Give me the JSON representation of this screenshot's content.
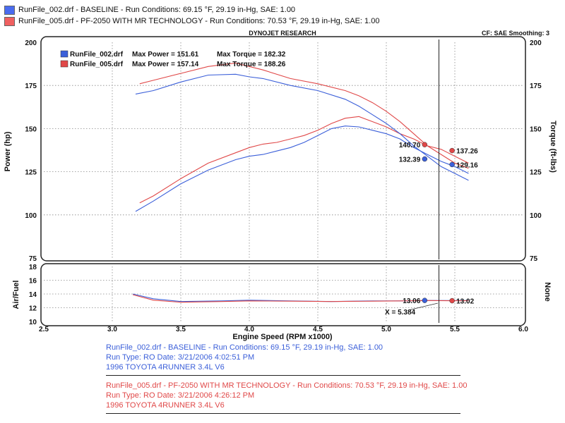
{
  "header": {
    "runs": [
      {
        "text": "RunFile_002.drf - BASELINE  -  Run Conditions: 69.15 °F, 29.19 in-Hg, SAE: 1.00",
        "color": "#3b5fd9"
      },
      {
        "text": "RunFile_005.drf - PF-2050 WITH MR TECHNOLOGY  -  Run Conditions: 70.53 °F, 29.19 in-Hg, SAE: 1.00",
        "color": "#e04848"
      }
    ],
    "chart_title": "DYNOJET RESEARCH",
    "cf_label": "CF: SAE  Smoothing: 3"
  },
  "footer": {
    "blocks": [
      {
        "color": "#3b5fd9",
        "lines": [
          "RunFile_002.drf - BASELINE  -  Run Conditions: 69.15 °F, 29.19 in-Hg, SAE: 1.00",
          "Run Type: RO  Date: 3/21/2006 4:02:51 PM",
          "1996 TOYOTA 4RUNNER 3.4L V6"
        ]
      },
      {
        "color": "#e04848",
        "lines": [
          "RunFile_005.drf - PF-2050 WITH MR TECHNOLOGY  -  Run Conditions: 70.53 °F, 29.19 in-Hg, SAE: 1.00",
          "Run Type: RO  Date: 3/21/2006 4:26:12 PM",
          "1996 TOYOTA 4RUNNER 3.4L V6"
        ]
      }
    ]
  },
  "chart_data": [
    {
      "type": "line",
      "title": "DYNOJET RESEARCH",
      "xlabel": "Engine Speed (RPM x1000)",
      "ylabel": "Power (hp)",
      "ylabel_right": "Torque (ft-lbs)",
      "xlim": [
        2.5,
        6.0
      ],
      "ylim": [
        75,
        200
      ],
      "ylim_right": [
        75,
        200
      ],
      "x_ticks": [
        "2.5",
        "3.0",
        "3.5",
        "4.0",
        "4.5",
        "5.0",
        "5.5",
        "6.0"
      ],
      "y_ticks": [
        "75",
        "100",
        "125",
        "150",
        "175",
        "200"
      ],
      "y_ticks_right": [
        "75",
        "100",
        "125",
        "150",
        "175",
        "200"
      ],
      "grid": true,
      "legend": [
        {
          "file": "RunFile_002.drf",
          "power_label": "Max Power = 151.61",
          "torque_label": "Max Torque = 182.32",
          "color": "#3b5fd9"
        },
        {
          "file": "RunFile_005.drf",
          "power_label": "Max Power = 157.14",
          "torque_label": "Max Torque = 188.26",
          "color": "#e04848"
        }
      ],
      "cursor_x": 5.384,
      "cursor_label": "X = 5.384",
      "series": [
        {
          "name": "RunFile_002.drf Power",
          "axis": "left",
          "color": "#3b5fd9",
          "x": [
            3.17,
            3.3,
            3.5,
            3.7,
            3.9,
            4.0,
            4.1,
            4.2,
            4.3,
            4.4,
            4.5,
            4.6,
            4.7,
            4.8,
            4.9,
            5.0,
            5.1,
            5.2,
            5.3,
            5.4,
            5.5,
            5.6
          ],
          "y": [
            102,
            108,
            118,
            126,
            132,
            134,
            135,
            137,
            139,
            142,
            146,
            150,
            151.5,
            151,
            149,
            147,
            144,
            139,
            135,
            131,
            128,
            124
          ]
        },
        {
          "name": "RunFile_005.drf Power",
          "axis": "left",
          "color": "#e04848",
          "x": [
            3.2,
            3.3,
            3.5,
            3.7,
            3.9,
            4.0,
            4.1,
            4.2,
            4.3,
            4.4,
            4.5,
            4.6,
            4.7,
            4.8,
            4.9,
            5.0,
            5.1,
            5.2,
            5.3,
            5.4,
            5.5,
            5.6
          ],
          "y": [
            107,
            111,
            121,
            130,
            136,
            139,
            141,
            142,
            144,
            146,
            149,
            153,
            156,
            157,
            154,
            151,
            147,
            144,
            140,
            138,
            134,
            130
          ]
        },
        {
          "name": "RunFile_002.drf Torque",
          "axis": "right",
          "color": "#3b5fd9",
          "x": [
            3.17,
            3.3,
            3.5,
            3.7,
            3.9,
            4.0,
            4.1,
            4.3,
            4.5,
            4.7,
            4.8,
            4.9,
            5.0,
            5.1,
            5.2,
            5.3,
            5.4,
            5.5,
            5.6
          ],
          "y": [
            170,
            172,
            177,
            181,
            181.5,
            180,
            179,
            175,
            172,
            167,
            163,
            158,
            153,
            147,
            140,
            134,
            128,
            124,
            120
          ]
        },
        {
          "name": "RunFile_005.drf Torque",
          "axis": "right",
          "color": "#e04848",
          "x": [
            3.2,
            3.3,
            3.5,
            3.7,
            3.9,
            4.0,
            4.1,
            4.3,
            4.5,
            4.7,
            4.8,
            4.9,
            5.0,
            5.1,
            5.2,
            5.3,
            5.4,
            5.5,
            5.6
          ],
          "y": [
            176,
            178,
            182,
            186,
            188,
            186,
            184,
            179,
            176,
            172,
            169,
            165,
            160,
            154,
            147,
            140,
            135,
            130,
            127
          ]
        }
      ],
      "markers": [
        {
          "x": 5.28,
          "y": 140.7,
          "axis": "left",
          "color": "#e04848",
          "label": "140.70",
          "label_side": "left"
        },
        {
          "x": 5.28,
          "y": 132.39,
          "axis": "left",
          "color": "#3b5fd9",
          "label": "132.39",
          "label_side": "left"
        },
        {
          "x": 5.48,
          "y": 137.26,
          "axis": "right",
          "color": "#e04848",
          "label": "137.26",
          "label_side": "right"
        },
        {
          "x": 5.48,
          "y": 129.16,
          "axis": "right",
          "color": "#3b5fd9",
          "label": "129.16",
          "label_side": "right"
        }
      ]
    },
    {
      "type": "line",
      "xlabel": "Engine Speed (RPM x1000)",
      "ylabel": "Air/Fuel",
      "ylabel_right": "None",
      "xlim": [
        2.5,
        6.0
      ],
      "ylim": [
        10,
        18
      ],
      "x_ticks": [
        "2.5",
        "3.0",
        "3.5",
        "4.0",
        "4.5",
        "5.0",
        "5.5",
        "6.0"
      ],
      "y_ticks": [
        "10",
        "12",
        "14",
        "16",
        "18"
      ],
      "grid": true,
      "series": [
        {
          "name": "RunFile_002.drf Air/Fuel",
          "color": "#3b5fd9",
          "x": [
            3.15,
            3.3,
            3.5,
            3.8,
            4.0,
            4.3,
            4.6,
            4.9,
            5.1,
            5.3,
            5.5,
            5.6
          ],
          "y": [
            14.0,
            13.3,
            12.9,
            13.0,
            13.1,
            13.0,
            12.9,
            13.0,
            13.0,
            13.06,
            13.05,
            13.05
          ]
        },
        {
          "name": "RunFile_005.drf Air/Fuel",
          "color": "#e04848",
          "x": [
            3.15,
            3.3,
            3.5,
            3.8,
            4.0,
            4.3,
            4.6,
            4.9,
            5.1,
            5.3,
            5.5,
            5.6
          ],
          "y": [
            13.9,
            13.1,
            12.8,
            12.9,
            13.0,
            12.95,
            12.9,
            12.95,
            13.0,
            13.05,
            13.02,
            13.02
          ]
        }
      ],
      "markers": [
        {
          "x": 5.28,
          "y": 13.06,
          "color": "#3b5fd9",
          "label": "13.06",
          "label_side": "left"
        },
        {
          "x": 5.48,
          "y": 13.02,
          "color": "#e04848",
          "label": "13.02",
          "label_side": "right"
        }
      ]
    }
  ]
}
